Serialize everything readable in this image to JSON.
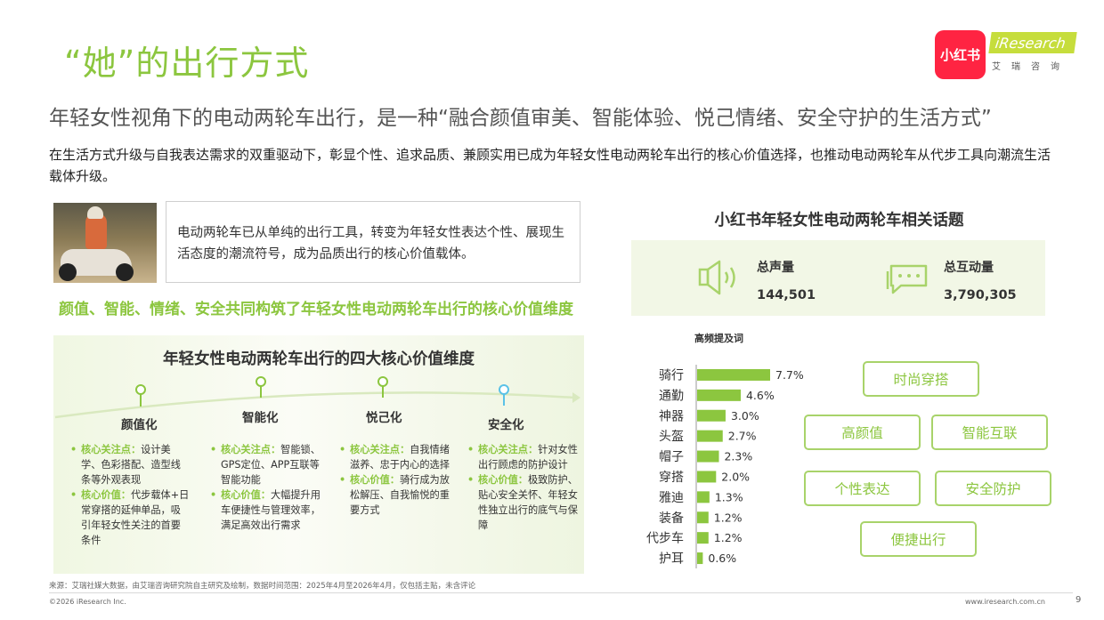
{
  "page": {
    "title": "“她”的出行方式",
    "subtitle": "年轻女性视角下的电动两轮车出行，是一种“融合颜值审美、智能体验、悦己情绪、安全守护的生活方式”",
    "description": "在生活方式升级与自我表达需求的双重驱动下，彰显个性、追求品质、兼顾实用已成为年轻女性电动两轮车出行的核心价值选择，也推动电动两轮车从代步工具向潮流生活载体升级。"
  },
  "logos": {
    "xhs": "小红书",
    "iresearch": "iResearch",
    "iresearch_cn": "艾瑞咨询"
  },
  "quote": "电动两轮车已从单纯的出行工具，转变为年轻女性表达个性、展现生活态度的潮流符号，成为品质出行的核心价值载体。",
  "left": {
    "green_heading": "颜值、智能、情绪、安全共同构筑了年轻女性电动两轮车出行的核心价值维度",
    "panel_title": "年轻女性电动两轮车出行的四大核心价值维度",
    "dimensions": [
      {
        "name": "颜值化",
        "focus_label": "核心关注点：",
        "focus": "设计美学、色彩搭配、造型线条等外观表现",
        "value_label": "核心价值：",
        "value": "代步载体+日常穿搭的延伸单品，吸引年轻女性关注的首要条件"
      },
      {
        "name": "智能化",
        "focus_label": "核心关注点：",
        "focus": "智能锁、GPS定位、APP互联等智能功能",
        "value_label": "核心价值：",
        "value": "大幅提升用车便捷性与管理效率，满足高效出行需求"
      },
      {
        "name": "悦己化",
        "focus_label": "核心关注点：",
        "focus": "自我情绪滋养、忠于内心的选择",
        "value_label": "核心价值：",
        "value": "骑行成为放松解压、自我愉悦的重要方式"
      },
      {
        "name": "安全化",
        "focus_label": "核心关注点：",
        "focus": "针对女性出行顾虑的防护设计",
        "value_label": "核心价值：",
        "value": "极致防护、贴心安全关怀、年轻女性独立出行的底气与保障"
      }
    ]
  },
  "right": {
    "title": "小红书年轻女性电动两轮车相关话题",
    "stats": [
      {
        "label": "总声量",
        "value": "144,501",
        "icon": "speaker-icon"
      },
      {
        "label": "总互动量",
        "value": "3,790,305",
        "icon": "comment-icon"
      }
    ],
    "freq_title": "高频提及词",
    "tags": [
      "时尚穿搭",
      "高颜值",
      "智能互联",
      "个性表达",
      "安全防护",
      "便捷出行"
    ]
  },
  "chart_data": {
    "type": "bar",
    "orientation": "horizontal",
    "title": "高频提及词",
    "categories": [
      "骑行",
      "通勤",
      "神器",
      "头盔",
      "帽子",
      "穿搭",
      "雅迪",
      "装备",
      "代步车",
      "护耳"
    ],
    "values": [
      7.7,
      4.6,
      3.0,
      2.7,
      2.3,
      2.0,
      1.3,
      1.2,
      1.2,
      0.6
    ],
    "value_labels": [
      "7.7%",
      "4.6%",
      "3.0%",
      "2.7%",
      "2.3%",
      "2.0%",
      "1.3%",
      "1.2%",
      "1.2%",
      "0.6%"
    ],
    "unit": "%",
    "bar_color": "#8cc63f",
    "grid": false
  },
  "footer": {
    "source": "来源：艾瑞社媒大数据，由艾瑞咨询研究院自主研究及绘制，数据时间范围：2025年4月至2026年4月，仅包括主贴，未含评论",
    "copyright": "©2026 iResearch Inc.",
    "site": "www.iresearch.com.cn",
    "page_number": "9"
  },
  "colors": {
    "accent_green": "#8cc63f",
    "tag_border": "#a8d36a",
    "xhs_red": "#ff2442",
    "iresearch_lime": "#c6dd3c"
  }
}
